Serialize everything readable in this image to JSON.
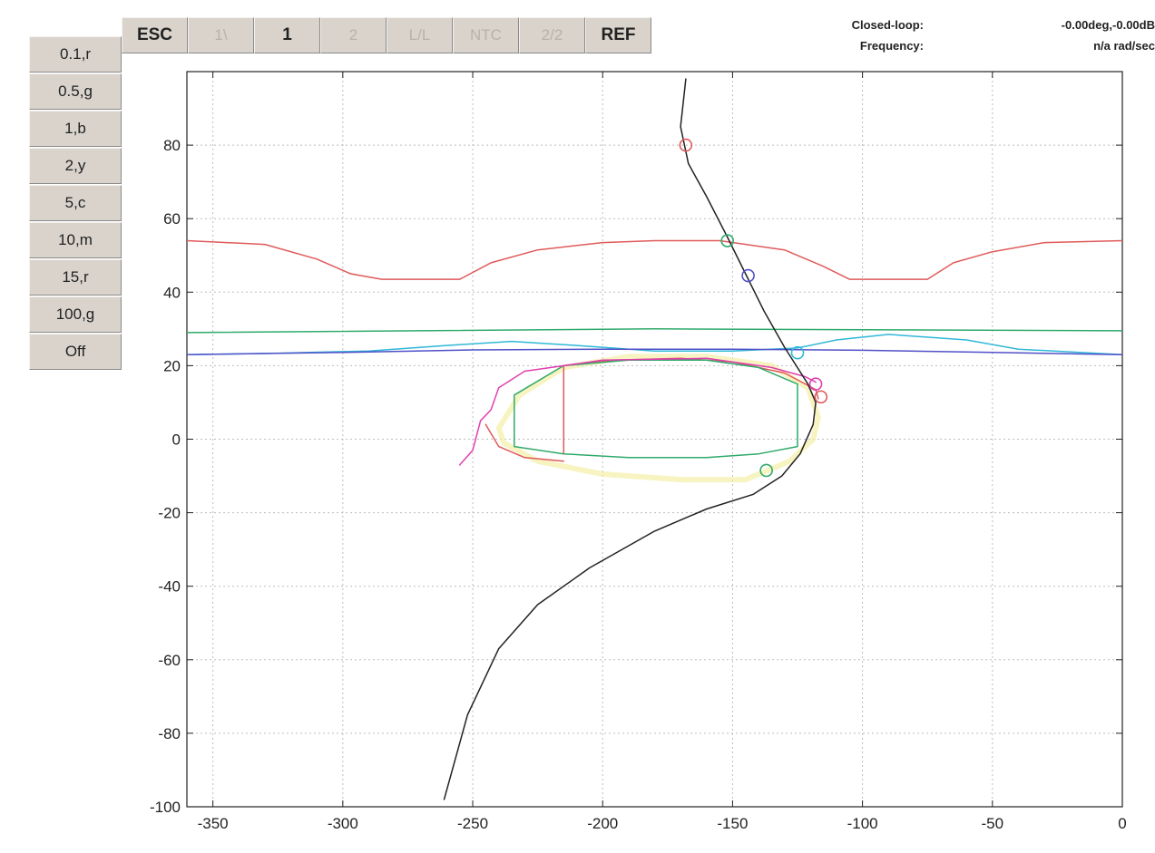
{
  "toolbar": {
    "buttons": [
      {
        "label": "ESC",
        "enabled": true
      },
      {
        "label": "1\\",
        "enabled": false
      },
      {
        "label": "1",
        "enabled": true
      },
      {
        "label": "2",
        "enabled": false
      },
      {
        "label": "L/L",
        "enabled": false
      },
      {
        "label": "NTC",
        "enabled": false
      },
      {
        "label": "2/2",
        "enabled": false
      },
      {
        "label": "REF",
        "enabled": true
      }
    ]
  },
  "sidebar": {
    "buttons": [
      {
        "label": "0.1,r"
      },
      {
        "label": "0.5,g"
      },
      {
        "label": "1,b"
      },
      {
        "label": "2,y"
      },
      {
        "label": "5,c"
      },
      {
        "label": "10,m"
      },
      {
        "label": "15,r"
      },
      {
        "label": "100,g"
      },
      {
        "label": "Off"
      }
    ]
  },
  "readouts": {
    "closed_loop_label": "Closed-loop:",
    "closed_loop_value": "-0.00deg,-0.00dB",
    "frequency_label": "Frequency:",
    "frequency_value": "n/a rad/sec"
  },
  "colors": {
    "red": "#e05a5a",
    "green": "#2faa6a",
    "blue": "#5050c8",
    "cyan": "#30b8d8",
    "magenta": "#e040b0",
    "yellow": "#f2ec9a",
    "black": "#222222",
    "grid": "#bdbdbd"
  },
  "chart_data": {
    "type": "line",
    "title": "",
    "xlabel": "",
    "ylabel": "",
    "xlim": [
      -360,
      0
    ],
    "ylim": [
      -100,
      100
    ],
    "xticks": [
      -350,
      -300,
      -250,
      -200,
      -150,
      -100,
      -50,
      0
    ],
    "yticks": [
      -100,
      -80,
      -60,
      -40,
      -20,
      0,
      20,
      40,
      60,
      80
    ],
    "grid": true,
    "series": [
      {
        "color": "red",
        "points": [
          [
            -360,
            54
          ],
          [
            -330,
            53
          ],
          [
            -310,
            49
          ],
          [
            -297,
            45
          ],
          [
            -285,
            43.5
          ],
          [
            -255,
            43.5
          ],
          [
            -243,
            48
          ],
          [
            -225,
            51.5
          ],
          [
            -200,
            53.5
          ],
          [
            -180,
            54
          ],
          [
            -155,
            54
          ],
          [
            -130,
            51.5
          ],
          [
            -115,
            47
          ],
          [
            -105,
            43.5
          ],
          [
            -75,
            43.5
          ],
          [
            -65,
            48
          ],
          [
            -50,
            51
          ],
          [
            -30,
            53.5
          ],
          [
            0,
            54
          ]
        ]
      },
      {
        "color": "green",
        "points": [
          [
            -360,
            29
          ],
          [
            -180,
            30
          ],
          [
            0,
            29.5
          ]
        ]
      },
      {
        "color": "cyan",
        "points": [
          [
            -360,
            23
          ],
          [
            -330,
            23.3
          ],
          [
            -290,
            24
          ],
          [
            -260,
            25.5
          ],
          [
            -235,
            26.6
          ],
          [
            -210,
            25.5
          ],
          [
            -180,
            24
          ],
          [
            -150,
            24
          ],
          [
            -125,
            24.8
          ],
          [
            -110,
            27
          ],
          [
            -90,
            28.5
          ],
          [
            -60,
            27
          ],
          [
            -40,
            24.5
          ],
          [
            0,
            23
          ]
        ]
      },
      {
        "color": "blue",
        "points": [
          [
            -360,
            23
          ],
          [
            -300,
            23.6
          ],
          [
            -250,
            24.3
          ],
          [
            -200,
            24.5
          ],
          [
            -150,
            24.5
          ],
          [
            -100,
            24.2
          ],
          [
            -50,
            23.6
          ],
          [
            0,
            23
          ]
        ]
      },
      {
        "color": "yellow",
        "points": [
          [
            -240,
            3
          ],
          [
            -232,
            12
          ],
          [
            -215,
            19.5
          ],
          [
            -190,
            22.5
          ],
          [
            -160,
            22.5
          ],
          [
            -135,
            20
          ],
          [
            -121,
            14
          ],
          [
            -117,
            6
          ],
          [
            -119,
            0
          ],
          [
            -128,
            -6
          ],
          [
            -145,
            -11
          ],
          [
            -170,
            -11
          ],
          [
            -200,
            -9.5
          ],
          [
            -225,
            -6
          ],
          [
            -238,
            -1
          ],
          [
            -240,
            3
          ]
        ]
      },
      {
        "color": "red",
        "points": [
          [
            -215,
            -4
          ],
          [
            -215,
            20
          ],
          [
            -195,
            21.5
          ],
          [
            -170,
            22
          ],
          [
            -150,
            21
          ],
          [
            -130,
            18
          ],
          [
            -118,
            13.5
          ],
          [
            -117,
            11
          ]
        ]
      },
      {
        "color": "red",
        "points": [
          [
            -245,
            4
          ],
          [
            -240,
            -2
          ],
          [
            -230,
            -5
          ],
          [
            -215,
            -6
          ]
        ]
      },
      {
        "color": "green",
        "points": [
          [
            -234,
            12
          ],
          [
            -234,
            -2
          ],
          [
            -215,
            -4
          ],
          [
            -190,
            -5
          ],
          [
            -160,
            -5
          ],
          [
            -140,
            -4
          ],
          [
            -125,
            -2
          ],
          [
            -125,
            15
          ],
          [
            -140,
            19.5
          ],
          [
            -160,
            21.5
          ],
          [
            -190,
            21.5
          ],
          [
            -215,
            20
          ],
          [
            -234,
            12
          ]
        ]
      },
      {
        "color": "magenta",
        "points": [
          [
            -255,
            -7
          ],
          [
            -250,
            -3
          ],
          [
            -247,
            5
          ],
          [
            -243,
            8
          ],
          [
            -240,
            14
          ],
          [
            -230,
            18.5
          ],
          [
            -200,
            21.5
          ],
          [
            -160,
            22
          ],
          [
            -135,
            19.5
          ],
          [
            -122,
            17
          ],
          [
            -118,
            15.5
          ]
        ]
      },
      {
        "color": "black",
        "points": [
          [
            -168,
            98
          ],
          [
            -170,
            85
          ],
          [
            -167,
            75
          ],
          [
            -160,
            66
          ],
          [
            -152,
            55
          ],
          [
            -145,
            45
          ],
          [
            -138,
            35
          ],
          [
            -130,
            25
          ],
          [
            -121,
            15
          ],
          [
            -118,
            10
          ],
          [
            -119,
            4
          ],
          [
            -124,
            -4
          ],
          [
            -131,
            -10
          ],
          [
            -142,
            -15
          ],
          [
            -160,
            -19
          ],
          [
            -180,
            -25
          ],
          [
            -205,
            -35
          ],
          [
            -225,
            -45
          ],
          [
            -240,
            -57
          ],
          [
            -252,
            -75
          ],
          [
            -261,
            -98
          ]
        ]
      }
    ],
    "markers": [
      {
        "x": -168,
        "y": 80,
        "color": "red"
      },
      {
        "x": -152,
        "y": 54,
        "color": "green"
      },
      {
        "x": -144,
        "y": 44.5,
        "color": "blue"
      },
      {
        "x": -125,
        "y": 23.5,
        "color": "cyan"
      },
      {
        "x": -118,
        "y": 15,
        "color": "magenta"
      },
      {
        "x": -116,
        "y": 11.5,
        "color": "red"
      },
      {
        "x": -137,
        "y": -8.5,
        "color": "green"
      }
    ]
  }
}
